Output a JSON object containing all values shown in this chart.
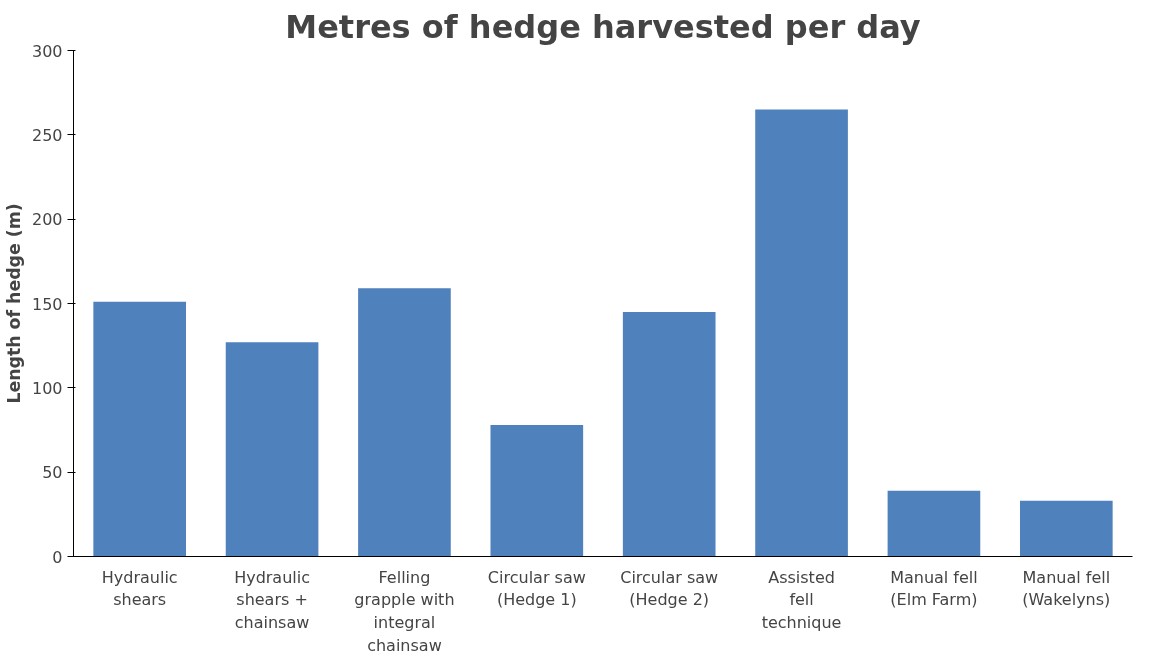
{
  "chart_data": {
    "type": "bar",
    "title": "Metres of hedge harvested per day",
    "ylabel": "Length of hedge (m)",
    "categories": [
      "Hydraulic shears",
      "Hydraulic shears + chainsaw",
      "Felling grapple with integral chainsaw",
      "Circular saw (Hedge 1)",
      "Circular saw (Hedge 2)",
      "Assisted fell technique",
      "Manual fell (Elm Farm)",
      "Manual fell (Wakelyns)"
    ],
    "values": [
      151,
      127,
      159,
      78,
      145,
      265,
      39,
      33
    ],
    "color": "#4f81bd",
    "ylim": [
      0,
      300
    ],
    "yticks": [
      0,
      50,
      100,
      150,
      200,
      250,
      300
    ],
    "grid": false
  }
}
